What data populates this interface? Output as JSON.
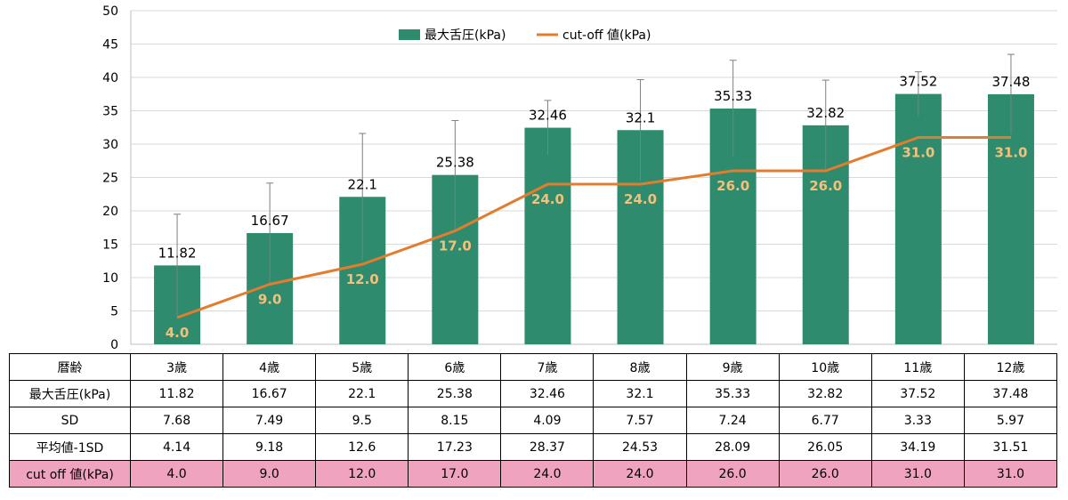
{
  "chart_data": {
    "type": "bar",
    "categories": [
      "3歳",
      "4歳",
      "5歳",
      "6歳",
      "7歳",
      "8歳",
      "9歳",
      "10歳",
      "11歳",
      "12歳"
    ],
    "ylim": [
      0,
      50
    ],
    "yticks": [
      0,
      5,
      10,
      15,
      20,
      25,
      30,
      35,
      40,
      45,
      50
    ],
    "grid": true,
    "legend_position": "top-center",
    "series": [
      {
        "name": "最大舌圧(kPa)",
        "type": "bar",
        "color": "#2e8b6e",
        "values": [
          11.82,
          16.67,
          22.1,
          25.38,
          32.46,
          32.1,
          35.33,
          32.82,
          37.52,
          37.48
        ],
        "labels": [
          "11.82",
          "16.67",
          "22.1",
          "25.38",
          "32.46",
          "32.1",
          "35.33",
          "32.82",
          "37.52",
          "37.48"
        ],
        "error_sd": [
          7.68,
          7.49,
          9.5,
          8.15,
          4.09,
          7.57,
          7.24,
          6.77,
          3.33,
          5.97
        ]
      },
      {
        "name": "cut-off 値(kPa)",
        "type": "line",
        "color": "#e47c2e",
        "label_color": "#f5c07a",
        "values": [
          4.0,
          9.0,
          12.0,
          17.0,
          24.0,
          24.0,
          26.0,
          26.0,
          31.0,
          31.0
        ],
        "labels": [
          "4.0",
          "9.0",
          "12.0",
          "17.0",
          "24.0",
          "24.0",
          "26.0",
          "26.0",
          "31.0",
          "31.0"
        ]
      }
    ]
  },
  "table": {
    "header": [
      "暦齢",
      "3歳",
      "4歳",
      "5歳",
      "6歳",
      "7歳",
      "8歳",
      "9歳",
      "10歳",
      "11歳",
      "12歳"
    ],
    "rows": [
      [
        "最大舌圧(kPa)",
        "11.82",
        "16.67",
        "22.1",
        "25.38",
        "32.46",
        "32.1",
        "35.33",
        "32.82",
        "37.52",
        "37.48"
      ],
      [
        "SD",
        "7.68",
        "7.49",
        "9.5",
        "8.15",
        "4.09",
        "7.57",
        "7.24",
        "6.77",
        "3.33",
        "5.97"
      ],
      [
        "平均値-1SD",
        "4.14",
        "9.18",
        "12.6",
        "17.23",
        "28.37",
        "24.53",
        "28.09",
        "26.05",
        "34.19",
        "31.51"
      ],
      [
        "cut off 値(kPa)",
        "4.0",
        "9.0",
        "12.0",
        "17.0",
        "24.0",
        "24.0",
        "26.0",
        "26.0",
        "31.0",
        "31.0"
      ]
    ],
    "highlight_color": "#efa3bf"
  }
}
